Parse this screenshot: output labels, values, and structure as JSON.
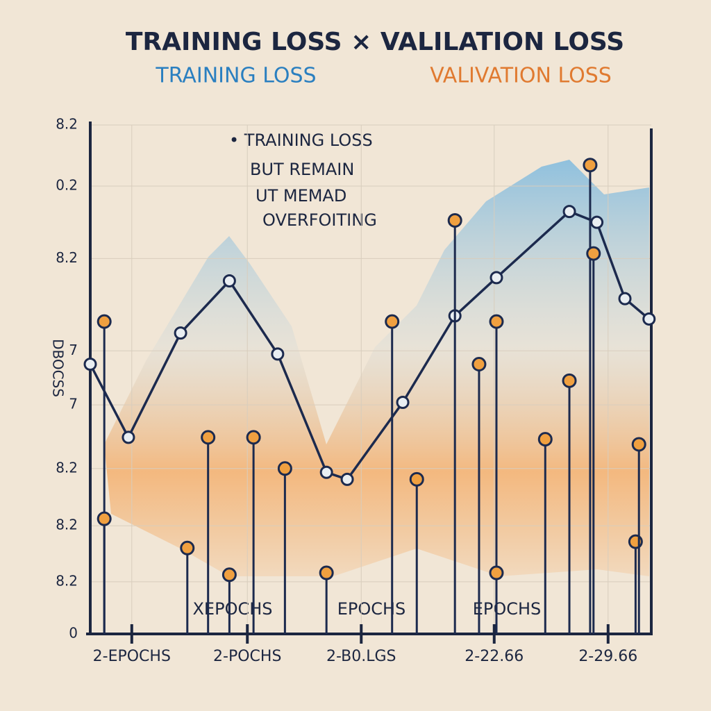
{
  "chart_data": {
    "type": "line",
    "title": "TRAINING LOSS × VALILATION LOSS",
    "y_label": "DBOCSS",
    "annotations": [
      "• TRAINING LOSS",
      "BUT REMAIN",
      "UT MEMAD",
      "OVERFOITING"
    ],
    "axis_notes": [
      "XEPOCHS",
      "EPOCHS",
      "EPOCHS"
    ],
    "xlim": [
      0,
      10
    ],
    "ylim": [
      0,
      8
    ],
    "xticks": [
      {
        "value": 0.74,
        "label": "2-EPOCHS"
      },
      {
        "value": 2.8,
        "label": "2-POCHS"
      },
      {
        "value": 4.83,
        "label": "2-B0.LGS"
      },
      {
        "value": 7.2,
        "label": "2-22.66"
      },
      {
        "value": 9.23,
        "label": "2-29.66"
      }
    ],
    "yticks": [
      0,
      {
        "value": 0.82,
        "label": "8.2"
      },
      {
        "value": 1.7,
        "label": "8.2"
      },
      {
        "value": 2.6,
        "label": "8.2"
      },
      {
        "value": 3.6,
        "label": "7"
      },
      {
        "value": 4.45,
        "label": "7"
      },
      {
        "value": 5.9,
        "label": "8.2"
      },
      {
        "value": 7.04,
        "label": "0.2"
      },
      {
        "value": 8,
        "label": "8.2"
      }
    ],
    "grid": true,
    "series": [
      {
        "name": "TRAINING LOSS",
        "color": "#1c2a4e",
        "legend_color": "#2a7fc0",
        "mode": "line",
        "x": [
          0,
          0.68,
          1.61,
          2.48,
          3.34,
          4.21,
          4.58,
          5.57,
          6.5,
          7.24,
          8.54,
          9.03,
          9.53,
          9.96
        ],
        "values": [
          4.24,
          3.09,
          4.73,
          5.55,
          4.4,
          2.54,
          2.43,
          3.64,
          5.0,
          5.6,
          6.64,
          6.47,
          5.27,
          4.95
        ]
      },
      {
        "name": "VALIVATION LOSS",
        "color": "#f0a040",
        "legend_color": "#e07a30",
        "mode": "markers",
        "x": [
          0.25,
          0.25,
          1.73,
          2.1,
          2.48,
          2.91,
          3.47,
          4.21,
          5.38,
          5.82,
          6.5,
          6.93,
          7.24,
          7.24,
          8.11,
          8.54,
          8.91,
          8.97,
          9.72,
          9.78
        ],
        "values": [
          4.91,
          1.81,
          1.35,
          3.09,
          0.93,
          3.09,
          2.6,
          0.96,
          4.91,
          2.43,
          6.5,
          4.24,
          4.91,
          0.96,
          3.06,
          3.98,
          7.37,
          5.98,
          1.45,
          2.98
        ]
      }
    ]
  }
}
